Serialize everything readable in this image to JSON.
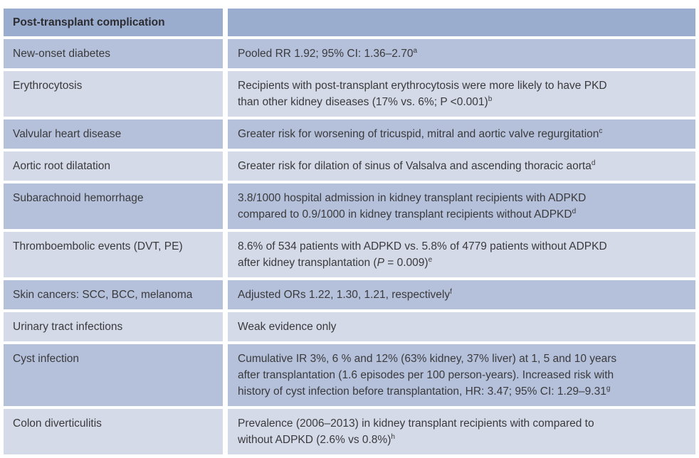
{
  "page": {
    "background": "#ffffff"
  },
  "colors": {
    "header_bg": "#9BADCF",
    "row_medium_bg": "#B5C1DB",
    "row_light_bg": "#D4DAE8",
    "text": "#3A3A3C",
    "header_text": "#2C2C31",
    "row_gap": "#FFFFFF"
  },
  "table": {
    "header": {
      "complication_label": "Post-transplant complication",
      "finding_label": ""
    },
    "rows": [
      {
        "complication": "New-onset diabetes",
        "shade": "medium",
        "finding_parts": [
          {
            "t": "Pooled RR 1.92; 95% CI: 1.36–2.70"
          },
          {
            "t": "a",
            "sup": true
          }
        ]
      },
      {
        "complication": "Erythrocytosis",
        "shade": "light",
        "finding_parts": [
          {
            "t": "Recipients with post-transplant erythrocytosis were more likely to have PKD"
          },
          {
            "br": true
          },
          {
            "t": "than other kidney diseases (17% vs. 6%; P <0.001)"
          },
          {
            "t": "b",
            "sup": true
          }
        ]
      },
      {
        "complication": "Valvular heart disease",
        "shade": "medium",
        "finding_parts": [
          {
            "t": "Greater risk for worsening of tricuspid, mitral and aortic valve regurgitation"
          },
          {
            "t": "c",
            "sup": true
          }
        ]
      },
      {
        "complication": "Aortic root dilatation",
        "shade": "light",
        "finding_parts": [
          {
            "t": "Greater risk for dilation of sinus of Valsalva and ascending thoracic aorta"
          },
          {
            "t": "d",
            "sup": true
          }
        ]
      },
      {
        "complication": "Subarachnoid hemorrhage",
        "shade": "medium",
        "finding_parts": [
          {
            "t": "3.8/1000 hospital admission in kidney transplant recipients with ADPKD"
          },
          {
            "br": true
          },
          {
            "t": "compared to 0.9/1000 in kidney transplant recipients without ADPKD"
          },
          {
            "t": "d",
            "sup": true
          }
        ]
      },
      {
        "complication": "Thromboembolic events (DVT, PE)",
        "shade": "light",
        "finding_parts": [
          {
            "t": "8.6% of 534 patients with ADPKD vs. 5.8% of 4779 patients without ADPKD"
          },
          {
            "br": true
          },
          {
            "t": "after kidney transplantation ("
          },
          {
            "t": "P",
            "italic": true
          },
          {
            "t": " = 0.009)"
          },
          {
            "t": "e",
            "sup": true
          }
        ]
      },
      {
        "complication": "Skin cancers: SCC, BCC, melanoma",
        "shade": "medium",
        "finding_parts": [
          {
            "t": "Adjusted ORs 1.22, 1.30, 1.21, respectively"
          },
          {
            "t": "f",
            "sup": true
          }
        ]
      },
      {
        "complication": "Urinary tract infections",
        "shade": "light",
        "finding_parts": [
          {
            "t": "Weak evidence only"
          }
        ]
      },
      {
        "complication": "Cyst infection",
        "shade": "medium",
        "finding_parts": [
          {
            "t": "Cumulative IR 3%, 6 % and 12% (63% kidney, 37% liver) at 1, 5 and 10 years"
          },
          {
            "br": true
          },
          {
            "t": "after transplantation (1.6 episodes per 100 person-years). Increased risk with"
          },
          {
            "br": true
          },
          {
            "t": "history of cyst infection before transplantation, HR: 3.47; 95% CI: 1.29–9.31"
          },
          {
            "t": "g",
            "sup": true
          }
        ]
      },
      {
        "complication": "Colon diverticulitis",
        "shade": "light",
        "finding_parts": [
          {
            "t": "Prevalence (2006–2013) in kidney transplant recipients with compared to"
          },
          {
            "br": true
          },
          {
            "t": "without ADPKD (2.6% vs 0.8%)"
          },
          {
            "t": "h",
            "sup": true
          }
        ]
      }
    ]
  }
}
